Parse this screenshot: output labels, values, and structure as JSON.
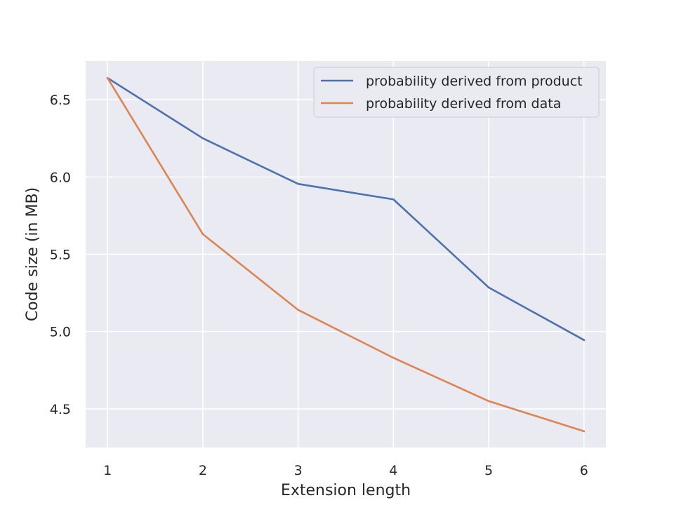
{
  "chart_data": {
    "type": "line",
    "title": "",
    "xlabel": "Extension length",
    "ylabel": "Code size (in MB)",
    "x": [
      1,
      2,
      3,
      4,
      5,
      6
    ],
    "xlim": [
      0.77,
      6.23
    ],
    "ylim": [
      4.25,
      6.75
    ],
    "xticks": [
      1,
      2,
      3,
      4,
      5,
      6
    ],
    "xtick_labels": [
      "1",
      "2",
      "3",
      "4",
      "5",
      "6"
    ],
    "yticks": [
      4.5,
      5.0,
      5.5,
      6.0,
      6.5
    ],
    "ytick_labels": [
      "4.5",
      "5.0",
      "5.5",
      "6.0",
      "6.5"
    ],
    "grid": true,
    "legend_position": "top-right",
    "background": "#eaeaf2",
    "series": [
      {
        "name": "probability derived from product",
        "color": "#4c72b0",
        "values": [
          6.64,
          6.25,
          5.955,
          5.855,
          5.285,
          4.945
        ]
      },
      {
        "name": "probability derived from data",
        "color": "#dd8452",
        "values": [
          6.64,
          5.63,
          5.14,
          4.83,
          4.55,
          4.355
        ]
      }
    ]
  }
}
